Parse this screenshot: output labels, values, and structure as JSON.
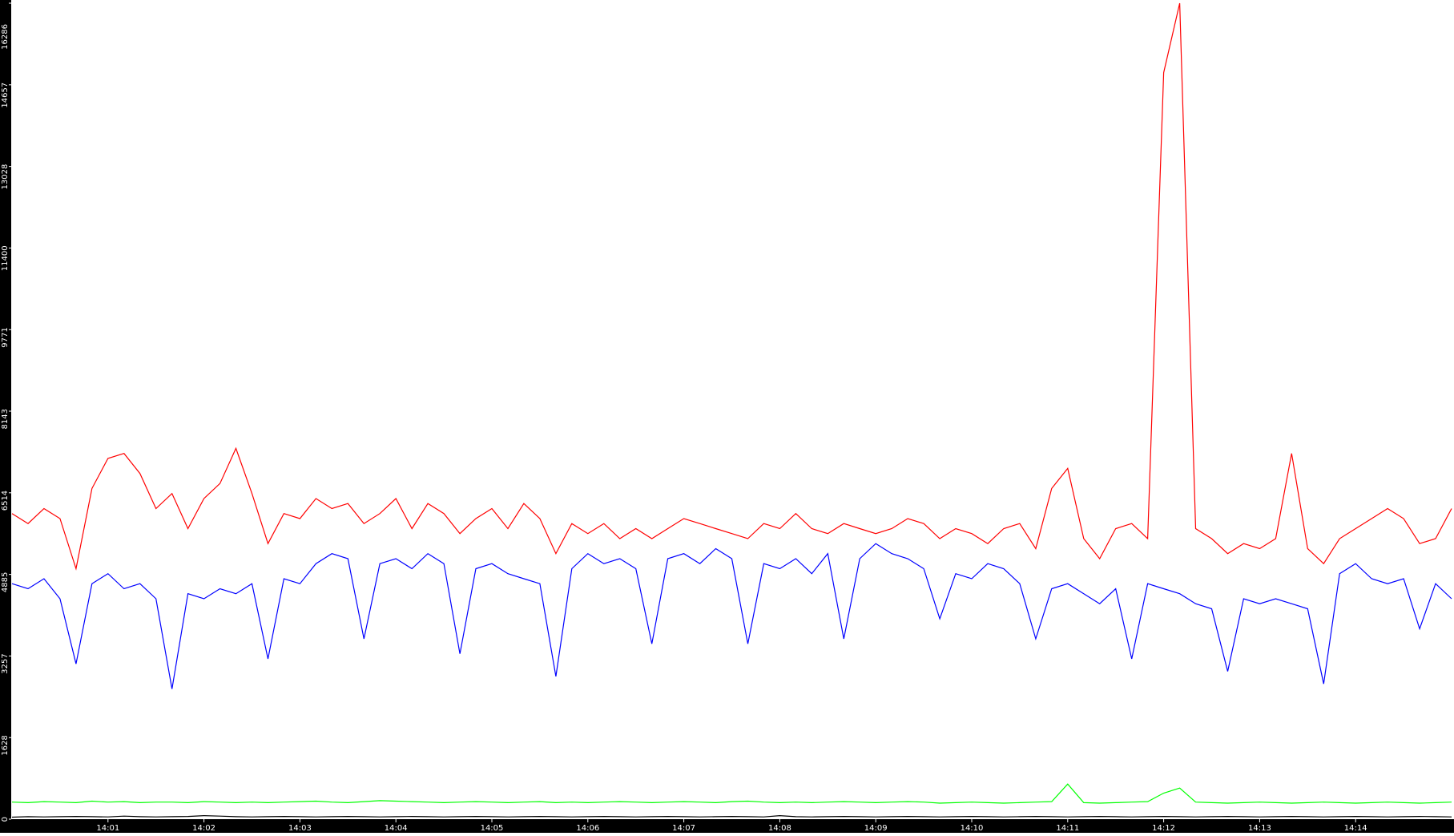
{
  "chart_data": {
    "type": "line",
    "categories": [
      null,
      null,
      null,
      null,
      null,
      null,
      "14:01",
      null,
      null,
      null,
      null,
      null,
      "14:02",
      null,
      null,
      null,
      null,
      null,
      "14:03",
      null,
      null,
      null,
      null,
      null,
      "14:04",
      null,
      null,
      null,
      null,
      null,
      "14:05",
      null,
      null,
      null,
      null,
      null,
      "14:06",
      null,
      null,
      null,
      null,
      null,
      "14:07",
      null,
      null,
      null,
      null,
      null,
      "14:08",
      null,
      null,
      null,
      null,
      null,
      "14:09",
      null,
      null,
      null,
      null,
      null,
      "14:10",
      null,
      null,
      null,
      null,
      null,
      "14:11",
      null,
      null,
      null,
      null,
      null,
      "14:12",
      null,
      null,
      null,
      null,
      null,
      "14:13",
      null,
      null,
      null,
      null,
      null,
      "14:14",
      null,
      null,
      null,
      null,
      null,
      null
    ],
    "ylim": [
      0,
      16286
    ],
    "yticks": [
      0,
      1628,
      3257,
      4885,
      6514,
      8143,
      9771,
      11400,
      13028,
      14657,
      16286
    ],
    "series": [
      {
        "color": "#ff0000",
        "values": [
          6100,
          5900,
          6200,
          6000,
          5000,
          6600,
          7200,
          7300,
          6900,
          6200,
          6500,
          5800,
          6400,
          6700,
          7400,
          6500,
          5500,
          6100,
          6000,
          6400,
          6200,
          6300,
          5900,
          6100,
          6400,
          5800,
          6300,
          6100,
          5700,
          6000,
          6200,
          5800,
          6300,
          6000,
          5300,
          5900,
          5700,
          5900,
          5600,
          5800,
          5600,
          5800,
          6000,
          5900,
          5800,
          5700,
          5600,
          5900,
          5800,
          6100,
          5800,
          5700,
          5900,
          5800,
          5700,
          5800,
          6000,
          5900,
          5600,
          5800,
          5700,
          5500,
          5800,
          5900,
          5400,
          6600,
          7000,
          5600,
          5200,
          5800,
          5900,
          5600,
          14900,
          16286,
          5800,
          5600,
          5300,
          5500,
          5400,
          5600,
          7300,
          5400,
          5100,
          5600,
          5800,
          6000,
          6200,
          6000,
          5500,
          5600,
          6200
        ]
      },
      {
        "color": "#0000ff",
        "values": [
          4700,
          4600,
          4800,
          4400,
          3100,
          4700,
          4900,
          4600,
          4700,
          4400,
          2600,
          4500,
          4400,
          4600,
          4500,
          4700,
          3200,
          4800,
          4700,
          5100,
          5300,
          5200,
          3600,
          5100,
          5200,
          5000,
          5300,
          5100,
          3300,
          5000,
          5100,
          4900,
          4800,
          4700,
          2850,
          5000,
          5300,
          5100,
          5200,
          5000,
          3500,
          5200,
          5300,
          5100,
          5400,
          5200,
          3500,
          5100,
          5000,
          5200,
          4900,
          5300,
          3600,
          5200,
          5500,
          5300,
          5200,
          5000,
          4000,
          4900,
          4800,
          5100,
          5000,
          4700,
          3600,
          4600,
          4700,
          4500,
          4300,
          4600,
          3200,
          4700,
          4600,
          4500,
          4300,
          4200,
          2950,
          4400,
          4300,
          4400,
          4300,
          4200,
          2700,
          4900,
          5100,
          4800,
          4700,
          4800,
          3800,
          4700,
          4400
        ]
      },
      {
        "color": "#00ff00",
        "values": [
          340,
          330,
          350,
          340,
          330,
          360,
          340,
          350,
          330,
          340,
          340,
          330,
          350,
          340,
          330,
          340,
          330,
          340,
          350,
          360,
          340,
          330,
          350,
          370,
          360,
          350,
          340,
          330,
          340,
          350,
          340,
          330,
          340,
          350,
          330,
          340,
          330,
          340,
          350,
          340,
          330,
          340,
          350,
          340,
          330,
          350,
          360,
          340,
          330,
          340,
          330,
          340,
          350,
          340,
          330,
          340,
          350,
          340,
          320,
          330,
          340,
          330,
          320,
          330,
          340,
          350,
          700,
          330,
          320,
          330,
          340,
          350,
          520,
          620,
          340,
          330,
          320,
          330,
          340,
          330,
          320,
          330,
          340,
          330,
          320,
          330,
          340,
          330,
          320,
          330,
          340
        ]
      },
      {
        "color": "#000000",
        "values": [
          40,
          50,
          45,
          50,
          55,
          50,
          45,
          60,
          50,
          45,
          50,
          55,
          70,
          60,
          50,
          45,
          50,
          55,
          50,
          45,
          50,
          55,
          50,
          45,
          50,
          55,
          50,
          45,
          50,
          55,
          50,
          45,
          50,
          55,
          50,
          45,
          50,
          55,
          50,
          45,
          50,
          55,
          50,
          45,
          50,
          55,
          50,
          45,
          70,
          50,
          45,
          50,
          55,
          50,
          45,
          50,
          55,
          50,
          45,
          50,
          55,
          50,
          45,
          50,
          55,
          50,
          45,
          50,
          55,
          50,
          45,
          50,
          55,
          50,
          45,
          50,
          55,
          50,
          45,
          50,
          55,
          50,
          45,
          50,
          55,
          50,
          45,
          50,
          55,
          50,
          45
        ]
      }
    ]
  }
}
